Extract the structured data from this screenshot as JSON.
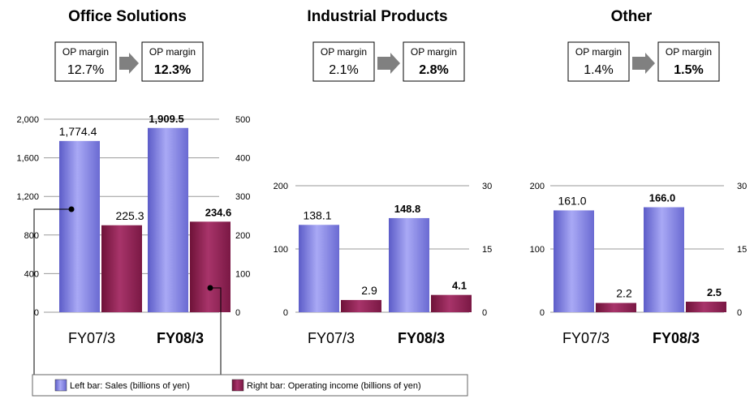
{
  "colors": {
    "sales_bar": "#7f7fe6",
    "income_bar": "#8a1f4e",
    "gridline": "#999999",
    "arrow": "#808080",
    "text": "#000000"
  },
  "chart_data": [
    {
      "type": "bar",
      "title": "Office Solutions",
      "categories": [
        "FY07/3",
        "FY08/3"
      ],
      "op_margin": {
        "label": "OP margin",
        "from": "12.7%",
        "to": "12.3%"
      },
      "series": [
        {
          "name": "Sales",
          "axis": "left",
          "values": [
            1774.4,
            1909.5
          ],
          "labels": [
            "1,774.4",
            "1,909.5"
          ]
        },
        {
          "name": "Operating income",
          "axis": "right",
          "values": [
            225.3,
            234.6
          ],
          "labels": [
            "225.3",
            "234.6"
          ]
        }
      ],
      "left_axis": {
        "ylim": [
          0,
          2000
        ],
        "ticks": [
          "0",
          "400",
          "800",
          "1,200",
          "1,600",
          "2,000"
        ]
      },
      "right_axis": {
        "ylim": [
          0,
          500
        ],
        "ticks": [
          "0",
          "100",
          "200",
          "300",
          "400",
          "500"
        ]
      }
    },
    {
      "type": "bar",
      "title": "Industrial Products",
      "categories": [
        "FY07/3",
        "FY08/3"
      ],
      "op_margin": {
        "label": "OP margin",
        "from": "2.1%",
        "to": "2.8%"
      },
      "series": [
        {
          "name": "Sales",
          "axis": "left",
          "values": [
            138.1,
            148.8
          ],
          "labels": [
            "138.1",
            "148.8"
          ]
        },
        {
          "name": "Operating income",
          "axis": "right",
          "values": [
            2.9,
            4.1
          ],
          "labels": [
            "2.9",
            "4.1"
          ]
        }
      ],
      "left_axis": {
        "ylim": [
          0,
          200
        ],
        "ticks": [
          "0",
          "100",
          "200"
        ]
      },
      "right_axis": {
        "ylim": [
          0,
          30
        ],
        "ticks": [
          "0",
          "15",
          "30"
        ]
      }
    },
    {
      "type": "bar",
      "title": "Other",
      "categories": [
        "FY07/3",
        "FY08/3"
      ],
      "op_margin": {
        "label": "OP margin",
        "from": "1.4%",
        "to": "1.5%"
      },
      "series": [
        {
          "name": "Sales",
          "axis": "left",
          "values": [
            161.0,
            166.0
          ],
          "labels": [
            "161.0",
            "166.0"
          ]
        },
        {
          "name": "Operating income",
          "axis": "right",
          "values": [
            2.2,
            2.5
          ],
          "labels": [
            "2.2",
            "2.5"
          ]
        }
      ],
      "left_axis": {
        "ylim": [
          0,
          200
        ],
        "ticks": [
          "0",
          "100",
          "200"
        ]
      },
      "right_axis": {
        "ylim": [
          0,
          30
        ],
        "ticks": [
          "0",
          "15",
          "30"
        ]
      }
    }
  ],
  "legend": {
    "left_bar": "Left bar: Sales (billions of yen)",
    "right_bar": "Right bar: Operating income (billions of yen)"
  }
}
